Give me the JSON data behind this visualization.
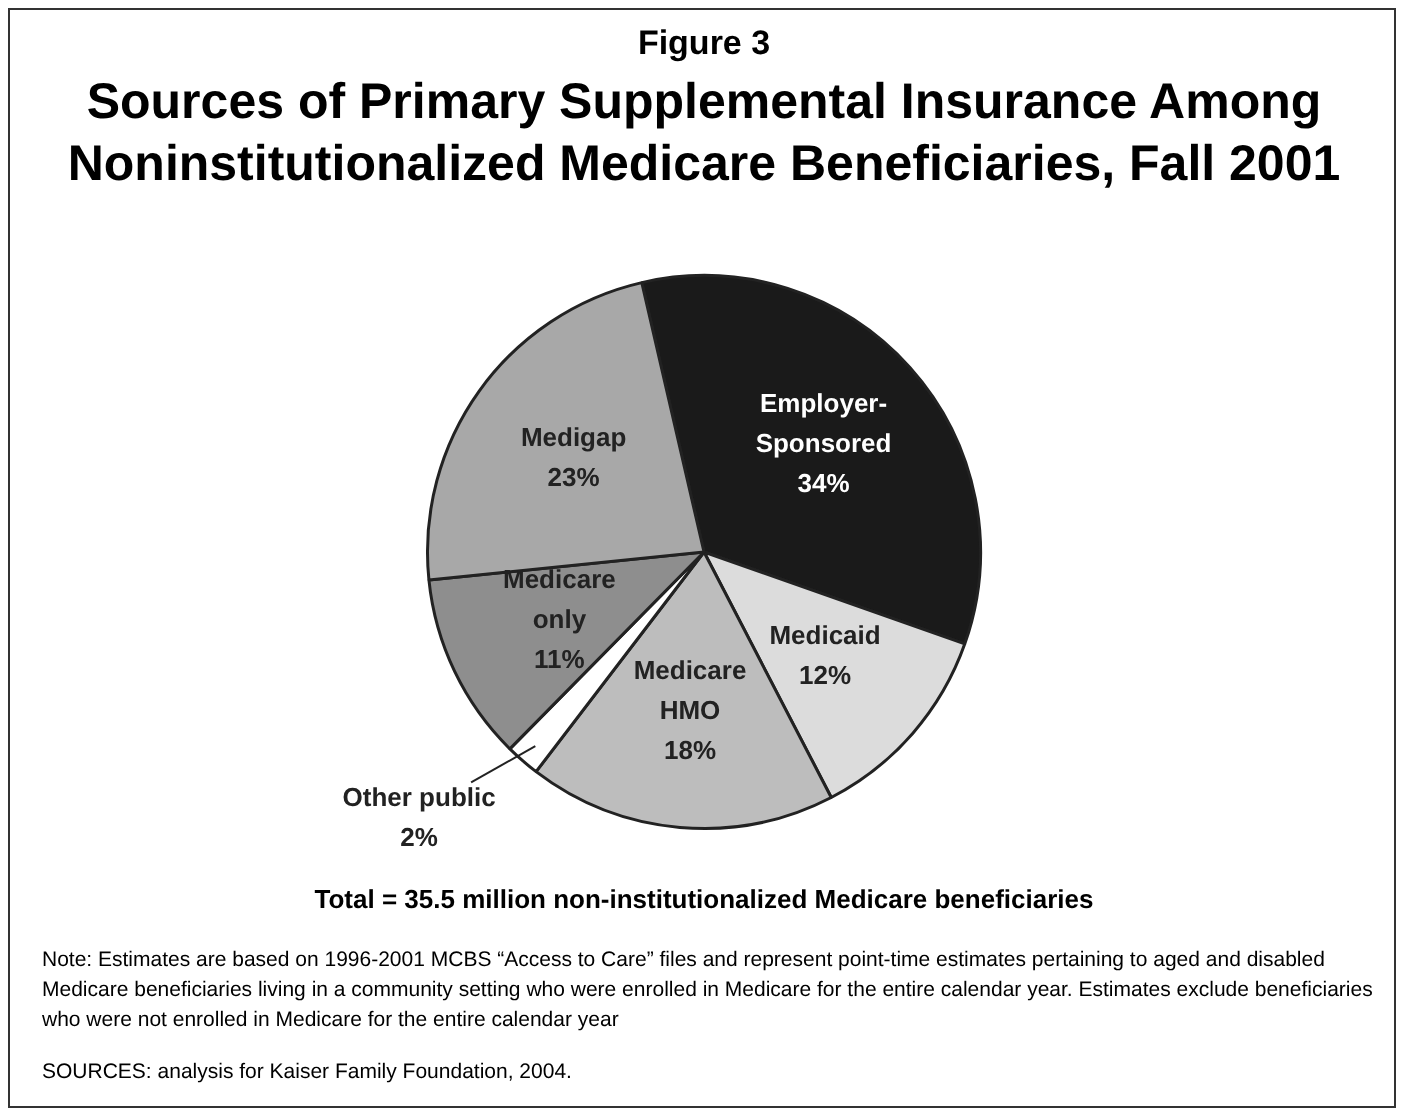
{
  "chart_data": {
    "type": "pie",
    "title": "Figure 3",
    "subtitle": "Sources of Primary Supplemental Insurance Among Noninstitutionalized Medicare Beneficiaries, Fall 2001",
    "categories": [
      "Employer-Sponsored",
      "Medicaid",
      "Medicare HMO",
      "Other public",
      "Medicare only",
      "Medigap"
    ],
    "values": [
      34,
      12,
      18,
      2,
      11,
      23
    ],
    "value_labels": [
      "34%",
      "12%",
      "18%",
      "2%",
      "11%",
      "23%"
    ],
    "colors": [
      "#1a1a1a",
      "#dcdcdc",
      "#bdbdbd",
      "#ffffff",
      "#8e8e8e",
      "#a8a8a8"
    ],
    "legend": false,
    "annotations": [
      "Total = 35.5 million non-institutionalized Medicare beneficiaries",
      "Note: Estimates are based on 1996-2001 MCBS “Access to Care” files and represent point-time estimates pertaining to aged and disabled Medicare beneficiaries living in a community setting who were enrolled in Medicare for the entire calendar year. Estimates exclude beneficiaries who were not enrolled in Medicare for the entire calendar year",
      "SOURCES: analysis for Kaiser Family Foundation, 2004."
    ]
  }
}
